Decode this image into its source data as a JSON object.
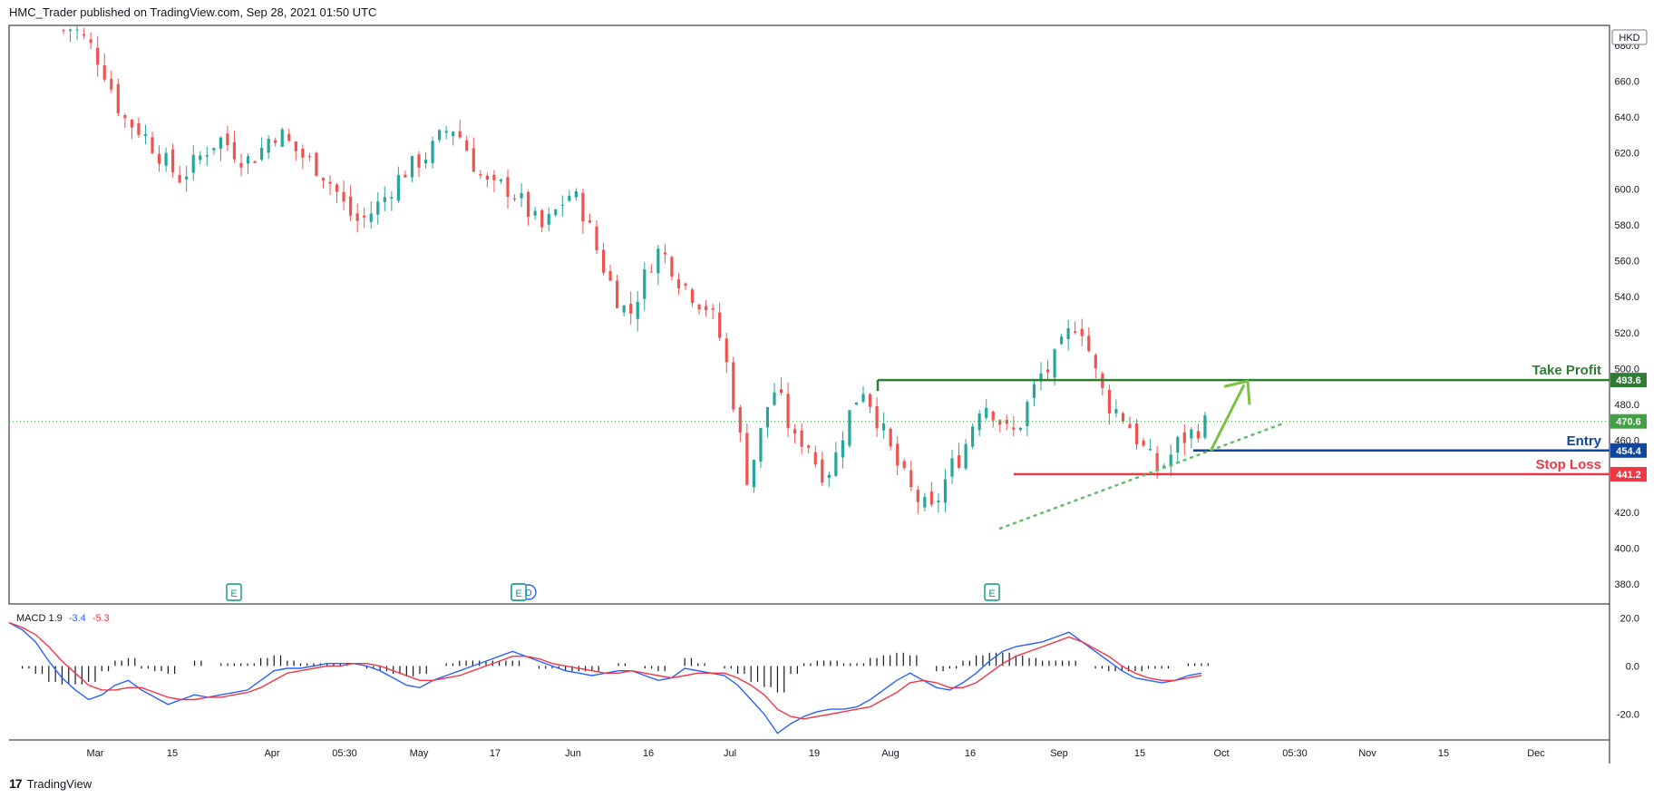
{
  "header": {
    "title": "HMC_Trader published on TradingView.com, Sep 28, 2021 01:50 UTC"
  },
  "footer": {
    "brand": "TradingView",
    "logo_glyph": "17"
  },
  "colors": {
    "up": "#26a69a",
    "down": "#ef5350",
    "take_profit": "#2e7d32",
    "entry": "#0d47a1",
    "stop_loss": "#f23645",
    "last_price": "#43a047",
    "macd_line": "#2962ff",
    "signal_line": "#f23645",
    "trend": "#66bb6a",
    "arrow": "#7cc243"
  },
  "chart_data": [
    {
      "type": "candlestick",
      "currency": "HKD",
      "ylim": [
        370,
        690
      ],
      "y_ticks": [
        380,
        400,
        420,
        440,
        460,
        480,
        500,
        520,
        540,
        560,
        580,
        600,
        620,
        640,
        660,
        680
      ],
      "y_tick_labels": [
        "380.0",
        "400.0",
        "420.0",
        "440.0",
        "460.0",
        "480.0",
        "500.0",
        "520.0",
        "540.0",
        "560.0",
        "580.0",
        "600.0",
        "620.0",
        "640.0",
        "660.0",
        "680.0"
      ],
      "x_ticks": [
        "Mar",
        "15",
        "Apr",
        "05:30",
        "May",
        "17",
        "Jun",
        "16",
        "Jul",
        "19",
        "Aug",
        "16",
        "Sep",
        "15",
        "Oct",
        "05:30",
        "Nov",
        "15",
        "Dec"
      ],
      "close_path": [
        [
          0,
          688
        ],
        [
          5,
          690
        ],
        [
          10,
          684
        ],
        [
          15,
          678
        ],
        [
          20,
          668
        ],
        [
          25,
          655
        ],
        [
          30,
          640
        ],
        [
          35,
          636
        ],
        [
          40,
          632
        ],
        [
          45,
          625
        ],
        [
          50,
          618
        ],
        [
          55,
          611
        ],
        [
          60,
          606
        ],
        [
          65,
          612
        ],
        [
          70,
          618
        ],
        [
          75,
          624
        ],
        [
          80,
          628
        ],
        [
          85,
          624
        ],
        [
          90,
          618
        ],
        [
          95,
          616
        ],
        [
          100,
          620
        ],
        [
          105,
          628
        ],
        [
          110,
          632
        ],
        [
          115,
          626
        ],
        [
          120,
          620
        ],
        [
          125,
          616
        ],
        [
          130,
          612
        ],
        [
          135,
          606
        ],
        [
          140,
          598
        ],
        [
          145,
          588
        ],
        [
          150,
          582
        ],
        [
          155,
          584
        ],
        [
          160,
          590
        ],
        [
          165,
          596
        ],
        [
          170,
          604
        ],
        [
          175,
          610
        ],
        [
          180,
          614
        ],
        [
          185,
          618
        ],
        [
          190,
          624
        ],
        [
          195,
          632
        ],
        [
          200,
          634
        ],
        [
          205,
          626
        ],
        [
          210,
          614
        ],
        [
          215,
          604
        ],
        [
          220,
          600
        ],
        [
          225,
          602
        ],
        [
          230,
          598
        ],
        [
          235,
          592
        ],
        [
          240,
          584
        ],
        [
          245,
          578
        ],
        [
          250,
          584
        ],
        [
          255,
          592
        ],
        [
          260,
          598
        ],
        [
          265,
          590
        ],
        [
          270,
          576
        ],
        [
          275,
          560
        ],
        [
          280,
          548
        ],
        [
          285,
          536
        ],
        [
          290,
          530
        ],
        [
          295,
          544
        ],
        [
          300,
          558
        ],
        [
          305,
          566
        ],
        [
          310,
          560
        ],
        [
          315,
          550
        ],
        [
          320,
          544
        ],
        [
          325,
          538
        ],
        [
          330,
          534
        ],
        [
          335,
          522
        ],
        [
          340,
          500
        ],
        [
          345,
          470
        ],
        [
          350,
          440
        ],
        [
          355,
          455
        ],
        [
          360,
          478
        ],
        [
          365,
          490
        ],
        [
          370,
          472
        ],
        [
          375,
          458
        ],
        [
          380,
          462
        ],
        [
          385,
          448
        ],
        [
          390,
          440
        ],
        [
          395,
          450
        ],
        [
          400,
          468
        ],
        [
          405,
          482
        ],
        [
          410,
          490
        ],
        [
          415,
          476
        ],
        [
          420,
          464
        ],
        [
          425,
          450
        ],
        [
          430,
          440
        ],
        [
          435,
          430
        ],
        [
          440,
          424
        ],
        [
          445,
          420
        ],
        [
          450,
          434
        ],
        [
          455,
          446
        ],
        [
          460,
          452
        ],
        [
          465,
          468
        ],
        [
          470,
          482
        ],
        [
          475,
          478
        ],
        [
          480,
          470
        ],
        [
          485,
          462
        ],
        [
          490,
          470
        ],
        [
          495,
          484
        ],
        [
          500,
          496
        ],
        [
          505,
          500
        ],
        [
          510,
          510
        ],
        [
          515,
          520
        ],
        [
          520,
          528
        ],
        [
          525,
          510
        ],
        [
          530,
          492
        ],
        [
          535,
          480
        ],
        [
          540,
          476
        ],
        [
          545,
          470
        ],
        [
          550,
          460
        ],
        [
          555,
          452
        ],
        [
          560,
          444
        ],
        [
          565,
          448
        ],
        [
          570,
          458
        ],
        [
          575,
          462
        ],
        [
          580,
          466
        ],
        [
          585,
          470
        ]
      ],
      "levels": [
        {
          "name": "Take Profit",
          "value": 493.6,
          "label": "493.6"
        },
        {
          "name": "Entry",
          "value": 454.4,
          "label": "454.4"
        },
        {
          "name": "Stop Loss",
          "value": 441.2,
          "label": "441.2"
        }
      ],
      "last_price": {
        "value": 470.6,
        "label": "470.6"
      },
      "earnings_markers": [
        "E",
        "E",
        "E"
      ],
      "dividend_marker": "D"
    },
    {
      "type": "line",
      "indicator": "MACD",
      "legend": {
        "name": "MACD",
        "hist": "1.9",
        "macd": "-3.4",
        "signal": "-5.3"
      },
      "ylim": [
        -30,
        25
      ],
      "y_ticks": [
        20,
        0,
        -20
      ],
      "y_tick_labels": [
        "20.0",
        "0.0",
        "-20.0"
      ],
      "macd": [
        18,
        15,
        10,
        2,
        -5,
        -10,
        -14,
        -12,
        -8,
        -6,
        -10,
        -13,
        -16,
        -14,
        -12,
        -13,
        -12,
        -11,
        -10,
        -6,
        -2,
        -1,
        -1,
        0,
        1,
        1,
        1,
        0,
        -2,
        -5,
        -8,
        -9,
        -6,
        -4,
        -2,
        0,
        2,
        4,
        6,
        4,
        2,
        0,
        -2,
        -3,
        -4,
        -3,
        -2,
        -2,
        -4,
        -6,
        -5,
        -1,
        -2,
        -3,
        -4,
        -8,
        -14,
        -20,
        -28,
        -24,
        -21,
        -19,
        -18,
        -18,
        -17,
        -14,
        -10,
        -6,
        -3,
        -6,
        -9,
        -10,
        -7,
        -3,
        2,
        6,
        8,
        9,
        10,
        12,
        14,
        10,
        6,
        2,
        -2,
        -5,
        -6,
        -7,
        -6,
        -4,
        -3
      ],
      "signal": [
        18,
        16,
        13,
        8,
        2,
        -3,
        -8,
        -10,
        -10,
        -9,
        -9,
        -11,
        -13,
        -14,
        -14,
        -13,
        -13,
        -12,
        -11,
        -9,
        -6,
        -3,
        -2,
        -1,
        0,
        0,
        1,
        1,
        0,
        -2,
        -4,
        -6,
        -6,
        -5,
        -4,
        -2,
        0,
        2,
        4,
        4,
        3,
        1,
        0,
        -1,
        -2,
        -3,
        -3,
        -2,
        -3,
        -4,
        -5,
        -4,
        -3,
        -3,
        -3,
        -5,
        -8,
        -12,
        -18,
        -21,
        -22,
        -21,
        -20,
        -19,
        -18,
        -17,
        -14,
        -11,
        -7,
        -6,
        -7,
        -9,
        -9,
        -7,
        -3,
        1,
        4,
        6,
        8,
        10,
        12,
        10,
        7,
        4,
        0,
        -3,
        -5,
        -6,
        -6,
        -5,
        -4
      ]
    }
  ]
}
